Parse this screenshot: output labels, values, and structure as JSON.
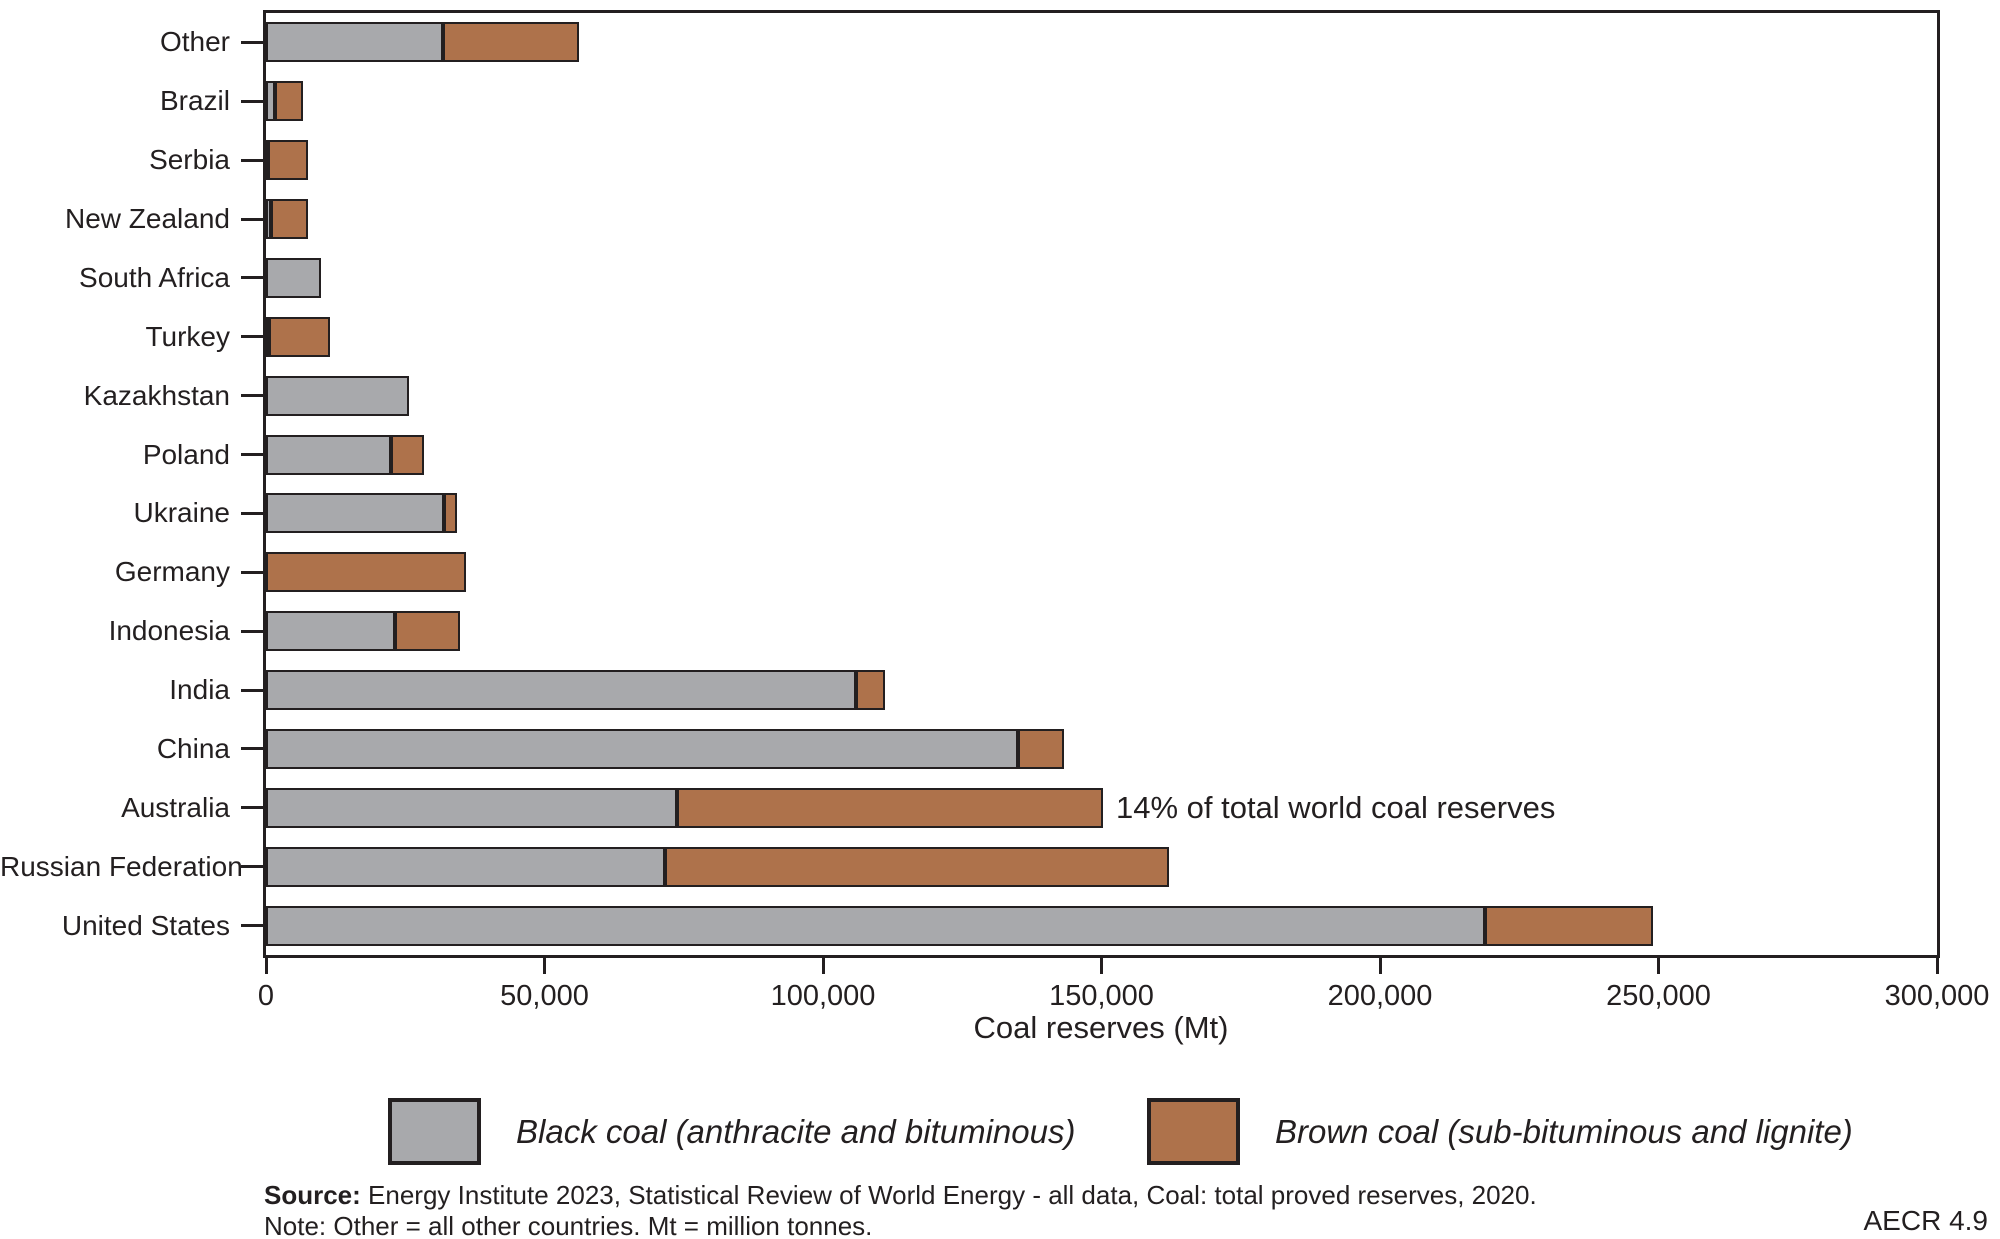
{
  "chart_data": {
    "type": "bar",
    "orientation": "horizontal",
    "stacked": true,
    "title": "",
    "xlabel": "Coal reserves (Mt)",
    "ylabel": "",
    "xlim": [
      0,
      300000
    ],
    "grid": false,
    "legend_position": "bottom",
    "categories_top_to_bottom": [
      "Other",
      "Brazil",
      "Serbia",
      "New Zealand",
      "South Africa",
      "Turkey",
      "Kazakhstan",
      "Poland",
      "Ukraine",
      "Germany",
      "Indonesia",
      "India",
      "China",
      "Australia",
      "Russian Federation",
      "United States"
    ],
    "series": [
      {
        "name": "Black coal (anthracite and bituminous)",
        "color": "#A8A9AC",
        "values": [
          31700,
          1547,
          402,
          825,
          9893,
          551,
          25605,
          22530,
          32039,
          0,
          23141,
          105979,
          135069,
          73719,
          71719,
          218938
        ]
      },
      {
        "name": "Brown coal (sub-bituminous and lignite)",
        "color": "#AE724B",
        "values": [
          24577,
          5049,
          7112,
          6750,
          0,
          10975,
          0,
          5865,
          2336,
          35900,
          11728,
          5073,
          8128,
          76508,
          90447,
          30003
        ]
      }
    ],
    "xticks": {
      "values": [
        0,
        50000,
        100000,
        150000,
        200000,
        250000,
        300000
      ],
      "labels": [
        "0",
        "50,000",
        "100,000",
        "150,000",
        "200,000",
        "250,000",
        "300,000"
      ]
    },
    "annotation": {
      "text": "14% of total world coal reserves",
      "category": "Australia",
      "x_value": 152600
    }
  },
  "footer": {
    "source_label": "Source:",
    "source_text": " Energy Institute 2023, Statistical Review of World Energy - all data, Coal: total proved reserves, 2020.",
    "note": "Note: Other = all other countries. Mt = million tonnes.",
    "code": "AECR 4.9"
  }
}
